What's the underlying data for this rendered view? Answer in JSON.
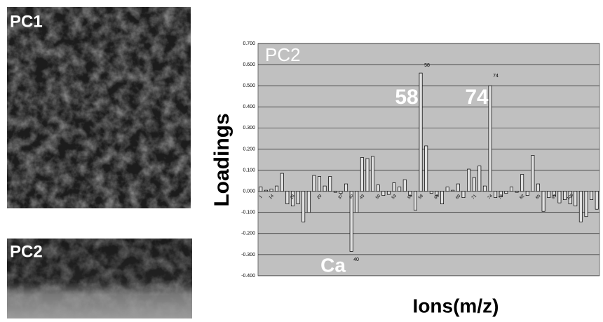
{
  "panels": [
    {
      "label": "PC1"
    },
    {
      "label": "PC2"
    }
  ],
  "chart_data": {
    "type": "bar",
    "title": "PC2",
    "y_label": "Loadings",
    "x_label": "Ions(m/z)",
    "categories": [
      "1",
      null,
      "14",
      null,
      null,
      null,
      "26",
      null,
      null,
      null,
      null,
      "29",
      null,
      null,
      null,
      "37",
      null,
      "40",
      null,
      "43",
      null,
      null,
      "50",
      null,
      null,
      "53",
      null,
      null,
      "56",
      null,
      "58",
      null,
      null,
      "60",
      null,
      null,
      null,
      "69",
      null,
      null,
      "71",
      null,
      null,
      "74",
      null,
      "78",
      null,
      null,
      null,
      "82",
      null,
      null,
      "85",
      null,
      null,
      "93",
      null,
      null,
      "100",
      null,
      null,
      null,
      null,
      null
    ],
    "values": [
      0.02,
      0.005,
      0.01,
      0.025,
      0.085,
      -0.06,
      -0.07,
      -0.06,
      -0.145,
      -0.1,
      0.075,
      0.07,
      0.025,
      0.07,
      -0.005,
      -0.01,
      0.035,
      -0.285,
      -0.1,
      0.16,
      0.155,
      0.165,
      0.03,
      -0.02,
      -0.015,
      0.04,
      0.02,
      0.055,
      -0.02,
      -0.09,
      0.56,
      0.215,
      -0.01,
      -0.02,
      -0.06,
      0.02,
      0.005,
      0.035,
      -0.03,
      0.105,
      0.065,
      0.12,
      0.025,
      0.5,
      -0.03,
      -0.025,
      -0.01,
      0.02,
      -0.005,
      0.08,
      -0.02,
      0.17,
      0.035,
      -0.095,
      -0.03,
      -0.02,
      -0.055,
      -0.04,
      -0.06,
      -0.07,
      -0.145,
      -0.12,
      -0.04,
      -0.085
    ],
    "color": "#e0e0e0",
    "background": "#c0c0c0",
    "grid": true,
    "ylim": [
      -0.4,
      0.7
    ],
    "yticks": [
      {
        "value": -0.4,
        "label": "-0.400"
      },
      {
        "value": -0.3,
        "label": "-0.300"
      },
      {
        "value": -0.2,
        "label": "-0.200"
      },
      {
        "value": -0.1,
        "label": "-0.100"
      },
      {
        "value": 0,
        "label": "0.000"
      },
      {
        "value": 0.1,
        "label": "0.100"
      },
      {
        "value": 0.2,
        "label": "0.200"
      },
      {
        "value": 0.3,
        "label": "0.300"
      },
      {
        "value": 0.4,
        "label": "0.400"
      },
      {
        "value": 0.5,
        "label": "0.500"
      },
      {
        "value": 0.6,
        "label": "0.600"
      },
      {
        "value": 0.7,
        "label": "0.700"
      }
    ],
    "annotations": [
      "58",
      "74",
      "Ca",
      "58",
      "74",
      "40"
    ]
  }
}
